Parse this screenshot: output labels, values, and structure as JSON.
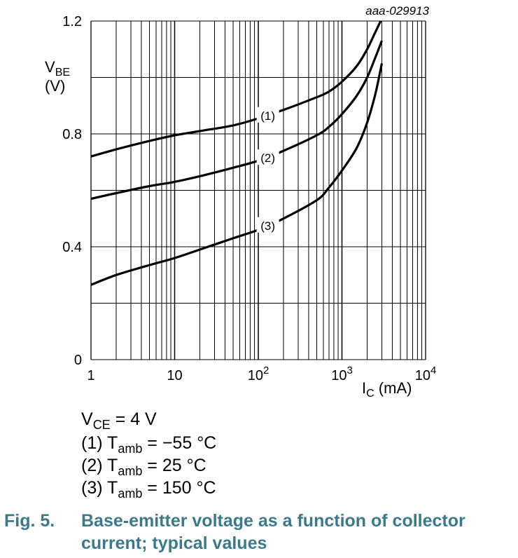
{
  "chart_data": {
    "type": "line",
    "id_code": "aaa-029913",
    "x_scale": "log",
    "xlim": [
      1,
      10000
    ],
    "ylim": [
      0,
      1.2
    ],
    "x_tick_labels": [
      {
        "value": 1,
        "base": "1",
        "exp": ""
      },
      {
        "value": 10,
        "base": "10",
        "exp": ""
      },
      {
        "value": 100,
        "base": "10",
        "exp": "2"
      },
      {
        "value": 1000,
        "base": "10",
        "exp": "3"
      },
      {
        "value": 10000,
        "base": "10",
        "exp": "4"
      }
    ],
    "y_tick_labels": [
      {
        "value": 0,
        "label": "0"
      },
      {
        "value": 0.4,
        "label": "0.4"
      },
      {
        "value": 0.8,
        "label": "0.8"
      },
      {
        "value": 1.2,
        "label": "1.2"
      }
    ],
    "y_grid": [
      0,
      0.2,
      0.4,
      0.6,
      0.8,
      1.0,
      1.2
    ],
    "xlabel": {
      "main": "I",
      "sub": "C",
      "unit": " (mA)"
    },
    "ylabel": {
      "main": "V",
      "sub": "BE",
      "unit": "(V)"
    },
    "series": [
      {
        "name": "(1)",
        "label": "(1)",
        "label_at": [
          130,
          0.865
        ],
        "x": [
          1,
          2,
          5,
          10,
          20,
          50,
          100,
          200,
          500,
          700,
          1000,
          1500,
          2000,
          2500,
          2900
        ],
        "y": [
          0.72,
          0.745,
          0.775,
          0.795,
          0.81,
          0.83,
          0.855,
          0.885,
          0.93,
          0.95,
          0.985,
          1.04,
          1.1,
          1.16,
          1.2
        ]
      },
      {
        "name": "(2)",
        "label": "(2)",
        "label_at": [
          130,
          0.715
        ],
        "x": [
          1,
          2,
          5,
          10,
          20,
          50,
          100,
          200,
          500,
          700,
          1000,
          1500,
          2000,
          2500,
          3000
        ],
        "y": [
          0.57,
          0.59,
          0.615,
          0.63,
          0.65,
          0.68,
          0.705,
          0.74,
          0.795,
          0.825,
          0.87,
          0.935,
          1.0,
          1.07,
          1.13
        ]
      },
      {
        "name": "(3)",
        "label": "(3)",
        "label_at": [
          130,
          0.475
        ],
        "x": [
          1,
          2,
          5,
          10,
          20,
          50,
          100,
          200,
          500,
          700,
          1000,
          1500,
          2000,
          2500,
          3000
        ],
        "y": [
          0.265,
          0.3,
          0.335,
          0.36,
          0.39,
          0.43,
          0.46,
          0.5,
          0.565,
          0.61,
          0.67,
          0.75,
          0.84,
          0.94,
          1.05
        ]
      }
    ]
  },
  "conditions": {
    "vce": {
      "main": "V",
      "sub": "CE",
      "rest": " = 4 V"
    },
    "items": [
      {
        "prefix": "(1) T",
        "sub": "amb",
        "rest": " = −55 °C"
      },
      {
        "prefix": "(2) T",
        "sub": "amb",
        "rest": " = 25 °C"
      },
      {
        "prefix": "(3) T",
        "sub": "amb",
        "rest": " = 150 °C"
      }
    ]
  },
  "caption": {
    "number": "Fig. 5.",
    "title": "Base-emitter voltage as a function of collector current; typical values"
  }
}
